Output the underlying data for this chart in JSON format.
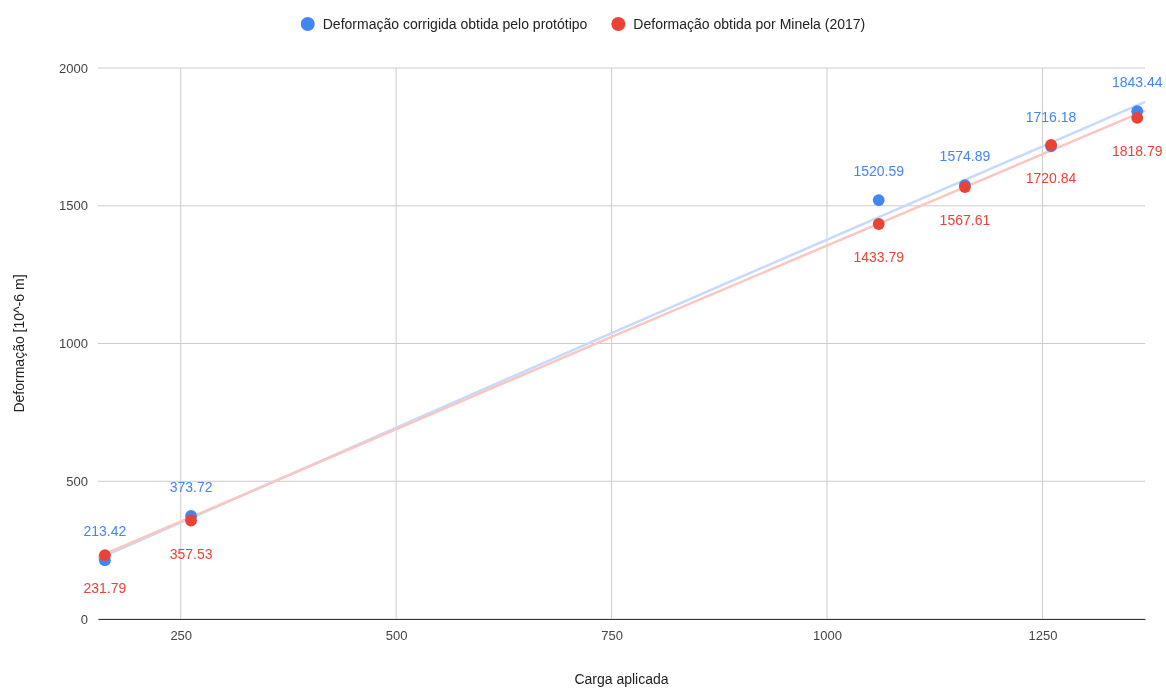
{
  "chart_data": {
    "type": "scatter",
    "xlabel": "Carga aplicada",
    "ylabel": "Deformação [10^-6 m]",
    "x": [
      162,
      262,
      1060,
      1160,
      1260,
      1360
    ],
    "series": [
      {
        "name": "Deformação corrigida obtida pelo protótipo",
        "color": "#4285f4",
        "values": [
          213.42,
          373.72,
          1520.59,
          1574.89,
          1716.18,
          1843.44
        ],
        "value_labels": [
          "213.42",
          "373.72",
          "1520.59",
          "1574.89",
          "1716.18",
          "1843.44"
        ]
      },
      {
        "name": "Deformação obtida por Minela (2017)",
        "color": "#ea4335",
        "values": [
          231.79,
          357.53,
          1433.79,
          1567.61,
          1720.84,
          1818.79
        ],
        "value_labels": [
          "231.79",
          "357.53",
          "1433.79",
          "1567.61",
          "1720.84",
          "1818.79"
        ]
      },
      {
        "type": "line",
        "color": "#c6dafc",
        "marker": "none",
        "x": [
          154,
          750,
          1369
        ],
        "values": [
          218,
          1038,
          1877
        ]
      },
      {
        "type": "line",
        "color": "#f9c6c2",
        "marker": "none",
        "x": [
          154,
          750,
          1369
        ],
        "values": [
          225,
          1024,
          1845
        ]
      }
    ],
    "xlim": [
      154,
      1369
    ],
    "ylim": [
      0,
      2000
    ],
    "xticks": [
      250,
      500,
      750,
      1000,
      1250
    ],
    "yticks": [
      0,
      500,
      1000,
      1500,
      2000
    ],
    "grid": true,
    "legend": "top",
    "marker": "circle",
    "line_style": "solid"
  }
}
